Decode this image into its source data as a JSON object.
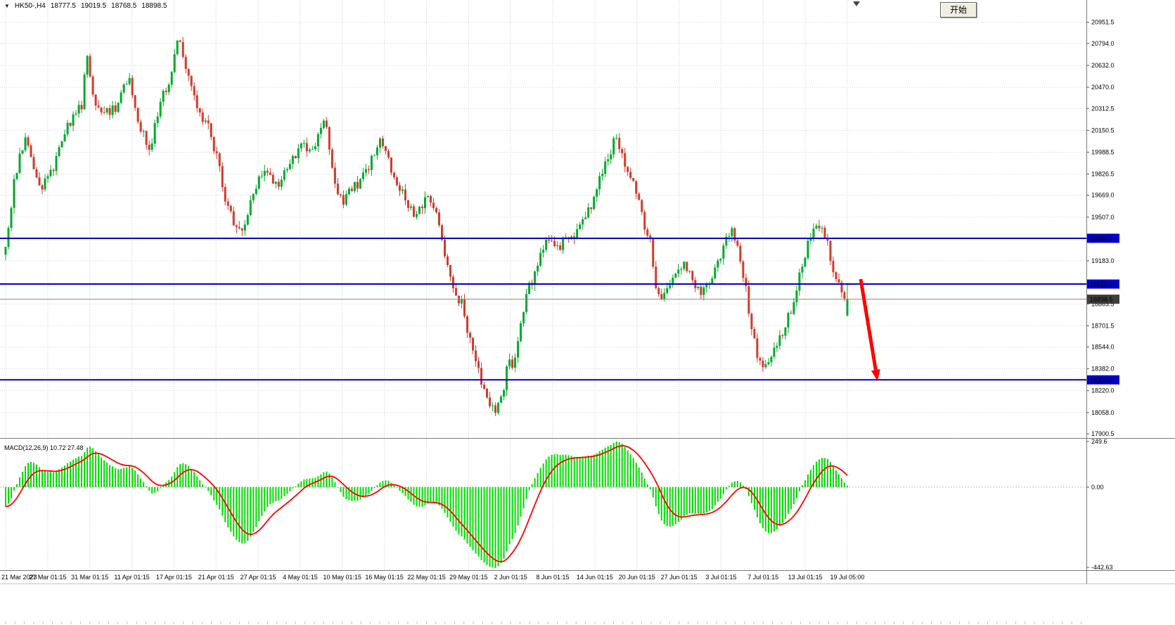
{
  "header": {
    "symbol_period": "HK50-,H4",
    "open": "18777.5",
    "high": "19019.5",
    "low": "18768.5",
    "close": "18898.5",
    "start_button_label": "开始"
  },
  "chart_data": [
    {
      "type": "candlestick",
      "title": "HK50-,H4",
      "timeframe": "H4",
      "ohlc_current": {
        "open": 18777.5,
        "high": 19019.5,
        "low": 18768.5,
        "close": 18898.5
      },
      "y_axis": {
        "range": [
          17885,
          21075
        ],
        "ticks": [
          "20951.5",
          "20794.0",
          "20632.0",
          "20470.0",
          "20312.5",
          "20150.5",
          "19988.5",
          "19826.5",
          "19669.0",
          "19507.0",
          "19183.0",
          "18863.5",
          "18701.5",
          "18544.0",
          "18382.0",
          "18220.0",
          "18058.0",
          "17900.5"
        ]
      },
      "x_axis": {
        "labels": [
          "21 Mar 2023",
          "27 Mar 01:15",
          "31 Mar 01:15",
          "11 Apr 01:15",
          "17 Apr 01:15",
          "21 Apr 01:15",
          "27 Apr 01:15",
          "4 May 01:15",
          "10 May 01:15",
          "16 May 01:15",
          "22 May 01:15",
          "29 May 01:15",
          "2 Jun 01:15",
          "8 Jun 01:15",
          "14 Jun 01:15",
          "20 Jun 01:15",
          "27 Jun 01:15",
          "3 Jul 01:15",
          "7 Jul 01:15",
          "13 Jul 01:15",
          "19 Jul 05:00"
        ]
      },
      "levels": [
        {
          "price": 19350.0,
          "label": "19350.0",
          "color": "#0000C8"
        },
        {
          "price": 19010.6,
          "label": "19010.6",
          "color": "#0000C8"
        },
        {
          "price": 18300.5,
          "label": "18300.5",
          "color": "#0000C8"
        }
      ],
      "current_price": {
        "value": 18898.5,
        "label": "18898.5",
        "line_color": "#8c8c8c",
        "label_bg": "#3d3d3d"
      },
      "annotation_arrow": {
        "from": [
          1224,
          397
        ],
        "to": [
          1248,
          542
        ],
        "color": "#FF0000"
      },
      "bar_count": 300,
      "colors": {
        "up": "#00A92C",
        "down": "#D13A2B",
        "level_line": "#0000C8",
        "grid": "#cccccc"
      },
      "price_path": [
        [
          8,
          19250
        ],
        [
          14,
          19500
        ],
        [
          20,
          19750
        ],
        [
          28,
          19950
        ],
        [
          36,
          20060
        ],
        [
          44,
          19960
        ],
        [
          52,
          19800
        ],
        [
          60,
          19740
        ],
        [
          68,
          19800
        ],
        [
          76,
          19880
        ],
        [
          84,
          20040
        ],
        [
          92,
          20140
        ],
        [
          100,
          20220
        ],
        [
          108,
          20280
        ],
        [
          116,
          20340
        ],
        [
          124,
          20720
        ],
        [
          130,
          20500
        ],
        [
          136,
          20360
        ],
        [
          142,
          20260
        ],
        [
          150,
          20320
        ],
        [
          158,
          20280
        ],
        [
          166,
          20340
        ],
        [
          174,
          20440
        ],
        [
          182,
          20560
        ],
        [
          190,
          20380
        ],
        [
          198,
          20200
        ],
        [
          206,
          20080
        ],
        [
          213,
          19990
        ],
        [
          220,
          20200
        ],
        [
          228,
          20360
        ],
        [
          236,
          20460
        ],
        [
          244,
          20560
        ],
        [
          250,
          20780
        ],
        [
          254,
          20870
        ],
        [
          258,
          20760
        ],
        [
          264,
          20640
        ],
        [
          272,
          20470
        ],
        [
          280,
          20330
        ],
        [
          288,
          20230
        ],
        [
          296,
          20180
        ],
        [
          304,
          20040
        ],
        [
          312,
          19880
        ],
        [
          320,
          19640
        ],
        [
          328,
          19520
        ],
        [
          336,
          19430
        ],
        [
          344,
          19380
        ],
        [
          352,
          19500
        ],
        [
          360,
          19680
        ],
        [
          368,
          19800
        ],
        [
          376,
          19860
        ],
        [
          384,
          19790
        ],
        [
          392,
          19740
        ],
        [
          400,
          19790
        ],
        [
          408,
          19860
        ],
        [
          416,
          19930
        ],
        [
          424,
          20000
        ],
        [
          432,
          20050
        ],
        [
          440,
          19990
        ],
        [
          448,
          20060
        ],
        [
          456,
          20140
        ],
        [
          462,
          20230
        ],
        [
          468,
          20050
        ],
        [
          474,
          19830
        ],
        [
          482,
          19670
        ],
        [
          490,
          19630
        ],
        [
          498,
          19690
        ],
        [
          506,
          19740
        ],
        [
          514,
          19790
        ],
        [
          522,
          19840
        ],
        [
          530,
          19950
        ],
        [
          538,
          20070
        ],
        [
          546,
          20010
        ],
        [
          554,
          19900
        ],
        [
          562,
          19820
        ],
        [
          570,
          19700
        ],
        [
          578,
          19610
        ],
        [
          586,
          19540
        ],
        [
          594,
          19560
        ],
        [
          602,
          19620
        ],
        [
          610,
          19660
        ],
        [
          618,
          19600
        ],
        [
          626,
          19400
        ],
        [
          634,
          19170
        ],
        [
          642,
          19050
        ],
        [
          650,
          18930
        ],
        [
          658,
          18850
        ],
        [
          666,
          18640
        ],
        [
          674,
          18460
        ],
        [
          682,
          18330
        ],
        [
          690,
          18230
        ],
        [
          698,
          18110
        ],
        [
          704,
          18070
        ],
        [
          710,
          18140
        ],
        [
          716,
          18230
        ],
        [
          722,
          18470
        ],
        [
          728,
          18350
        ],
        [
          734,
          18530
        ],
        [
          742,
          18760
        ],
        [
          750,
          18960
        ],
        [
          758,
          19050
        ],
        [
          766,
          19170
        ],
        [
          774,
          19280
        ],
        [
          782,
          19340
        ],
        [
          790,
          19310
        ],
        [
          798,
          19280
        ],
        [
          806,
          19400
        ],
        [
          814,
          19340
        ],
        [
          822,
          19420
        ],
        [
          830,
          19480
        ],
        [
          838,
          19560
        ],
        [
          846,
          19680
        ],
        [
          854,
          19800
        ],
        [
          862,
          19900
        ],
        [
          870,
          20020
        ],
        [
          877,
          20120
        ],
        [
          884,
          19990
        ],
        [
          891,
          19860
        ],
        [
          898,
          19810
        ],
        [
          905,
          19680
        ],
        [
          912,
          19530
        ],
        [
          919,
          19400
        ],
        [
          926,
          19300
        ],
        [
          933,
          18960
        ],
        [
          940,
          18890
        ],
        [
          947,
          18960
        ],
        [
          954,
          19010
        ],
        [
          961,
          19090
        ],
        [
          968,
          19150
        ],
        [
          976,
          19130
        ],
        [
          984,
          19090
        ],
        [
          992,
          18960
        ],
        [
          1000,
          18940
        ],
        [
          1008,
          19010
        ],
        [
          1016,
          19110
        ],
        [
          1024,
          19200
        ],
        [
          1032,
          19320
        ],
        [
          1040,
          19420
        ],
        [
          1048,
          19330
        ],
        [
          1054,
          19130
        ],
        [
          1062,
          18930
        ],
        [
          1070,
          18650
        ],
        [
          1078,
          18470
        ],
        [
          1086,
          18390
        ],
        [
          1094,
          18480
        ],
        [
          1102,
          18550
        ],
        [
          1110,
          18620
        ],
        [
          1118,
          18740
        ],
        [
          1126,
          18840
        ],
        [
          1134,
          19020
        ],
        [
          1142,
          19180
        ],
        [
          1150,
          19330
        ],
        [
          1158,
          19470
        ],
        [
          1166,
          19450
        ],
        [
          1174,
          19380
        ],
        [
          1182,
          19180
        ],
        [
          1190,
          19030
        ],
        [
          1198,
          18950
        ],
        [
          1205,
          18898
        ]
      ]
    },
    {
      "type": "macd",
      "label": "MACD(12,26,9) 10.72 27.48",
      "params": "12,26,9",
      "macd_value": 10.72,
      "signal_value": 27.48,
      "y_axis": {
        "max": 249.6,
        "min": -442.63,
        "ticks": [
          "249.6",
          "0.00",
          "-442.63"
        ]
      },
      "colors": {
        "histogram": "#00DC00",
        "signal": "#FF0000"
      }
    }
  ]
}
